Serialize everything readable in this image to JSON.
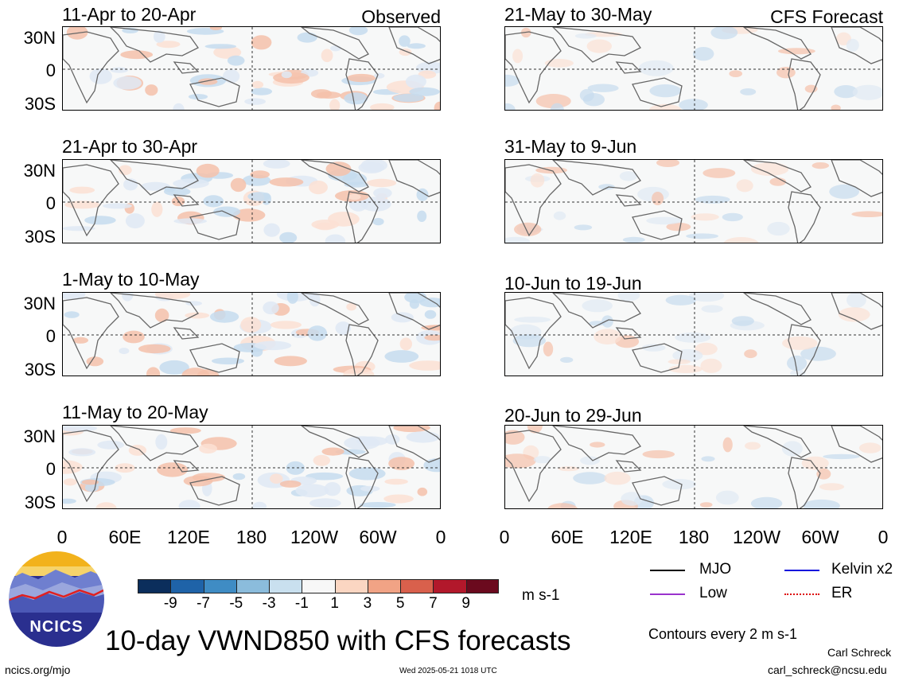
{
  "figure": {
    "main_title": "10-day VWND850 with CFS forecasts",
    "observed_label": "Observed",
    "forecast_label": "CFS Forecast",
    "units": "m s-1",
    "contour_note": "Contours every 2 m s-1",
    "author": "Carl Schreck",
    "email": "carl_schreck@ncsu.edu",
    "website": "ncics.org/mjo",
    "timestamp": "Wed 2025-05-21 1018 UTC",
    "logo_text": "NCICS"
  },
  "axes": {
    "y_ticks": [
      "30N",
      "0",
      "30S"
    ],
    "x_ticks": [
      "0",
      "60E",
      "120E",
      "180",
      "120W",
      "60W",
      "0"
    ]
  },
  "panels": {
    "observed": [
      {
        "title": "11-Apr to 20-Apr"
      },
      {
        "title": "21-Apr to 30-Apr"
      },
      {
        "title": "1-May to 10-May"
      },
      {
        "title": "11-May to 20-May"
      }
    ],
    "forecast": [
      {
        "title": "21-May to 30-May"
      },
      {
        "title": "31-May to 9-Jun"
      },
      {
        "title": "10-Jun to 19-Jun"
      },
      {
        "title": "20-Jun to 29-Jun"
      }
    ]
  },
  "colorbar": {
    "labels": [
      "-9",
      "-7",
      "-5",
      "-3",
      "-1",
      "1",
      "3",
      "5",
      "7",
      "9"
    ],
    "colors": [
      "#0b2e5c",
      "#1f63a8",
      "#3f8cc4",
      "#8bbcdc",
      "#c9e0ef",
      "#f7f7f7",
      "#fbd6c2",
      "#f1a385",
      "#d9604c",
      "#b2182b",
      "#6b0a1e"
    ]
  },
  "legend": [
    {
      "label": "MJO",
      "color": "#000000"
    },
    {
      "label": "Kelvin x2",
      "color": "#1010dd"
    },
    {
      "label": "Low",
      "color": "#9932cc"
    },
    {
      "label": "ER",
      "color": "#dd1010"
    }
  ]
}
